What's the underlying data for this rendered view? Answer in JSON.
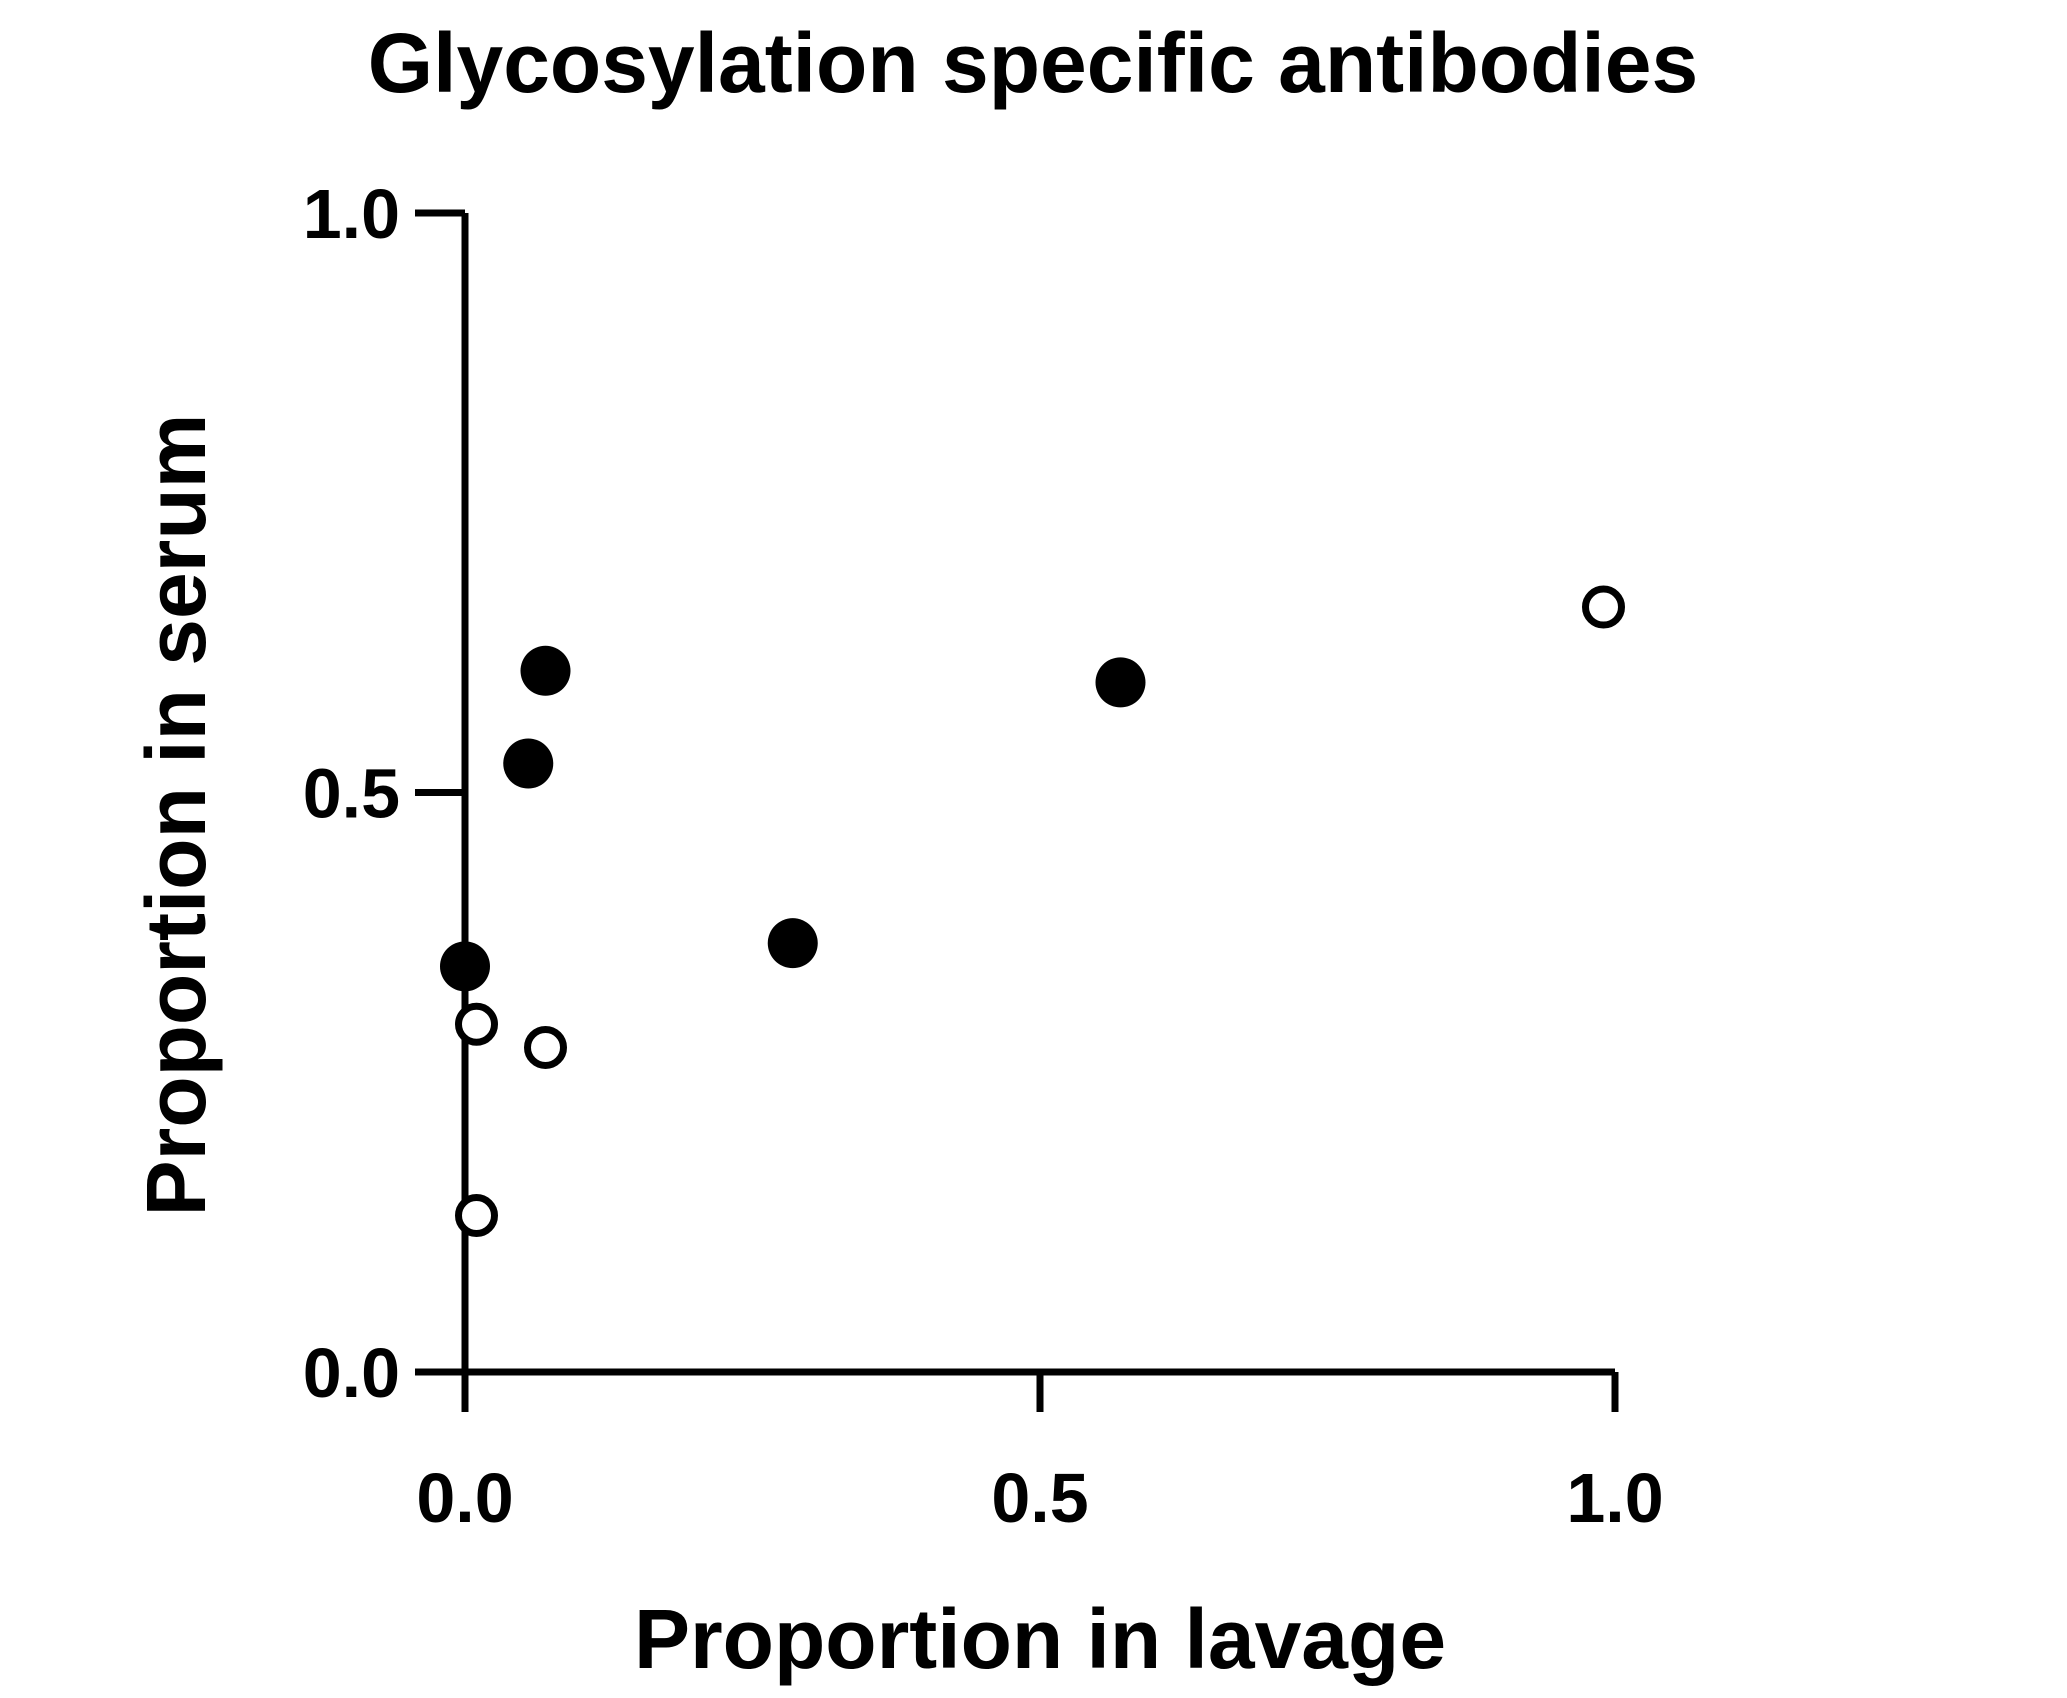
{
  "chart_data": {
    "type": "scatter",
    "title": "Glycosylation specific antibodies",
    "xlabel": "Proportion in lavage",
    "ylabel": "Proportion in serum",
    "xlim": [
      0.0,
      1.0
    ],
    "ylim": [
      0.0,
      1.0
    ],
    "xticks": [
      "0.0",
      "0.5",
      "1.0"
    ],
    "yticks": [
      "0.0",
      "0.5",
      "1.0"
    ],
    "grid": false,
    "legend": "none",
    "series": [
      {
        "marker": "filled-circle",
        "color": "#000000",
        "points": [
          {
            "x": 0.07,
            "y": 0.605
          },
          {
            "x": 0.055,
            "y": 0.525
          },
          {
            "x": 0.57,
            "y": 0.595
          },
          {
            "x": 0.285,
            "y": 0.37
          },
          {
            "x": 0.0,
            "y": 0.35
          }
        ]
      },
      {
        "marker": "open-circle",
        "color": "#000000",
        "points": [
          {
            "x": 0.99,
            "y": 0.66
          },
          {
            "x": 0.01,
            "y": 0.3
          },
          {
            "x": 0.07,
            "y": 0.28
          },
          {
            "x": 0.01,
            "y": 0.135
          }
        ]
      }
    ]
  }
}
